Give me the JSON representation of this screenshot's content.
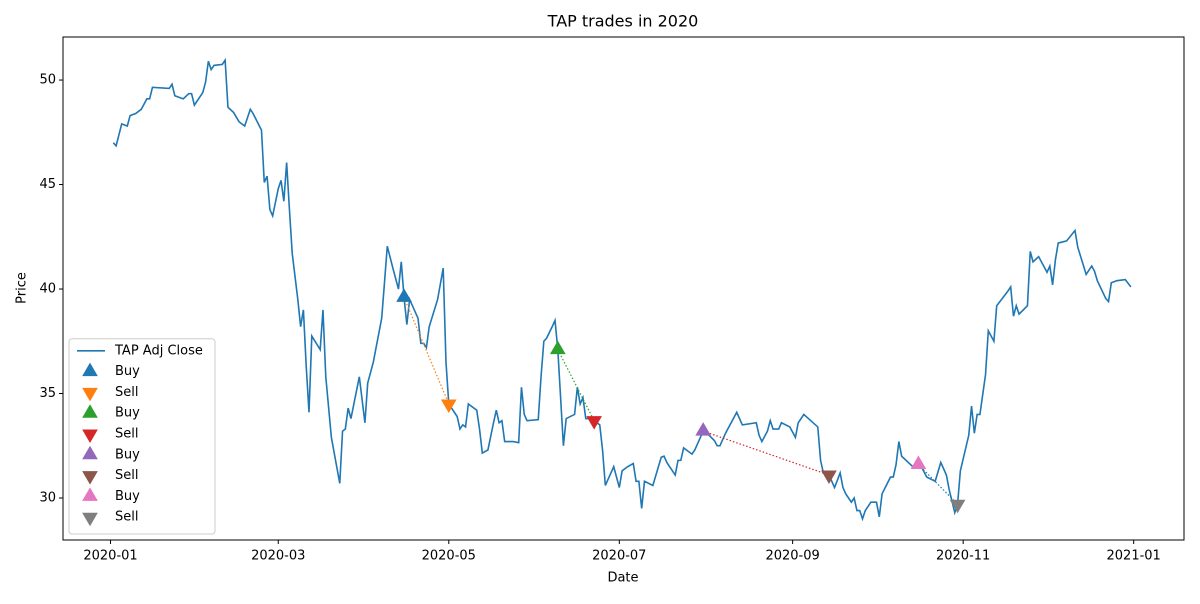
{
  "chart_data": {
    "type": "line",
    "title": "TAP trades in 2020",
    "x_label": "Date",
    "y_label": "Price",
    "xlim": [
      "2019-12-15",
      "2021-01-19"
    ],
    "ylim": [
      27.99,
      52.06
    ],
    "xticks": [
      {
        "value": "2020-01-01",
        "label": "2020-01"
      },
      {
        "value": "2020-03-01",
        "label": "2020-03"
      },
      {
        "value": "2020-05-01",
        "label": "2020-05"
      },
      {
        "value": "2020-07-01",
        "label": "2020-07"
      },
      {
        "value": "2020-09-01",
        "label": "2020-09"
      },
      {
        "value": "2020-11-01",
        "label": "2020-11"
      },
      {
        "value": "2021-01-01",
        "label": "2021-01"
      }
    ],
    "yticks": [
      30,
      35,
      40,
      45,
      50
    ],
    "grid": false,
    "legend": "lower left",
    "series": [
      {
        "name": "TAP Adj Close",
        "color": "#1f77b4",
        "marker": "line",
        "x": [
          "2020-01-02",
          "2020-01-03",
          "2020-01-05",
          "2020-01-07",
          "2020-01-08",
          "2020-01-10",
          "2020-01-12",
          "2020-01-14",
          "2020-01-15",
          "2020-01-16",
          "2020-01-22",
          "2020-01-23",
          "2020-01-24",
          "2020-01-27",
          "2020-01-29",
          "2020-01-30",
          "2020-01-31",
          "2020-02-03",
          "2020-02-04",
          "2020-02-05",
          "2020-02-06",
          "2020-02-07",
          "2020-02-10",
          "2020-02-11",
          "2020-02-12",
          "2020-02-14",
          "2020-02-16",
          "2020-02-18",
          "2020-02-20",
          "2020-02-21",
          "2020-02-24",
          "2020-02-25",
          "2020-02-26",
          "2020-02-27",
          "2020-02-28",
          "2020-03-01",
          "2020-03-02",
          "2020-03-03",
          "2020-03-04",
          "2020-03-05",
          "2020-03-06",
          "2020-03-08",
          "2020-03-09",
          "2020-03-10",
          "2020-03-11",
          "2020-03-12",
          "2020-03-13",
          "2020-03-16",
          "2020-03-17",
          "2020-03-18",
          "2020-03-20",
          "2020-03-23",
          "2020-03-24",
          "2020-03-25",
          "2020-03-26",
          "2020-03-27",
          "2020-03-30",
          "2020-04-01",
          "2020-04-02",
          "2020-04-04",
          "2020-04-07",
          "2020-04-08",
          "2020-04-09",
          "2020-04-11",
          "2020-04-13",
          "2020-04-14",
          "2020-04-15",
          "2020-04-16",
          "2020-04-17",
          "2020-04-20",
          "2020-04-21",
          "2020-04-22",
          "2020-04-23",
          "2020-04-24",
          "2020-04-27",
          "2020-04-29",
          "2020-04-30",
          "2020-05-01",
          "2020-05-04",
          "2020-05-05",
          "2020-05-06",
          "2020-05-07",
          "2020-05-08",
          "2020-05-11",
          "2020-05-12",
          "2020-05-13",
          "2020-05-15",
          "2020-05-17",
          "2020-05-18",
          "2020-05-19",
          "2020-05-20",
          "2020-05-21",
          "2020-05-24",
          "2020-05-26",
          "2020-05-27",
          "2020-05-28",
          "2020-05-29",
          "2020-06-02",
          "2020-06-03",
          "2020-06-04",
          "2020-06-05",
          "2020-06-07",
          "2020-06-08",
          "2020-06-09",
          "2020-06-11",
          "2020-06-12",
          "2020-06-15",
          "2020-06-16",
          "2020-06-17",
          "2020-06-18",
          "2020-06-19",
          "2020-06-20",
          "2020-06-22",
          "2020-06-24",
          "2020-06-25",
          "2020-06-26",
          "2020-06-29",
          "2020-07-01",
          "2020-07-02",
          "2020-07-04",
          "2020-07-06",
          "2020-07-07",
          "2020-07-08",
          "2020-07-09",
          "2020-07-10",
          "2020-07-13",
          "2020-07-15",
          "2020-07-16",
          "2020-07-17",
          "2020-07-18",
          "2020-07-21",
          "2020-07-22",
          "2020-07-23",
          "2020-07-24",
          "2020-07-27",
          "2020-07-28",
          "2020-07-29",
          "2020-07-31",
          "2020-08-01",
          "2020-08-04",
          "2020-08-05",
          "2020-08-06",
          "2020-08-08",
          "2020-08-10",
          "2020-08-12",
          "2020-08-14",
          "2020-08-19",
          "2020-08-20",
          "2020-08-21",
          "2020-08-23",
          "2020-08-24",
          "2020-08-25",
          "2020-08-27",
          "2020-08-28",
          "2020-08-31",
          "2020-09-02",
          "2020-09-03",
          "2020-09-05",
          "2020-09-10",
          "2020-09-11",
          "2020-09-12",
          "2020-09-14",
          "2020-09-16",
          "2020-09-18",
          "2020-09-19",
          "2020-09-20",
          "2020-09-22",
          "2020-09-23",
          "2020-09-24",
          "2020-09-25",
          "2020-09-26",
          "2020-09-27",
          "2020-09-29",
          "2020-10-01",
          "2020-10-02",
          "2020-10-03",
          "2020-10-06",
          "2020-10-07",
          "2020-10-08",
          "2020-10-09",
          "2020-10-10",
          "2020-10-14",
          "2020-10-16",
          "2020-10-17",
          "2020-10-19",
          "2020-10-22",
          "2020-10-24",
          "2020-10-26",
          "2020-10-27",
          "2020-10-29",
          "2020-10-30",
          "2020-10-31",
          "2020-11-03",
          "2020-11-04",
          "2020-11-05",
          "2020-11-06",
          "2020-11-07",
          "2020-11-09",
          "2020-11-10",
          "2020-11-12",
          "2020-11-13",
          "2020-11-17",
          "2020-11-18",
          "2020-11-19",
          "2020-11-20",
          "2020-11-21",
          "2020-11-24",
          "2020-11-25",
          "2020-11-26",
          "2020-11-28",
          "2020-12-01",
          "2020-12-02",
          "2020-12-03",
          "2020-12-04",
          "2020-12-05",
          "2020-12-08",
          "2020-12-11",
          "2020-12-12",
          "2020-12-15",
          "2020-12-16",
          "2020-12-17",
          "2020-12-18",
          "2020-12-19",
          "2020-12-22",
          "2020-12-23",
          "2020-12-24",
          "2020-12-26",
          "2020-12-29",
          "2020-12-31"
        ],
        "values": [
          47.0,
          46.85,
          47.9,
          47.8,
          48.3,
          48.4,
          48.6,
          49.1,
          49.1,
          49.65,
          49.6,
          49.8,
          49.25,
          49.1,
          49.35,
          49.35,
          48.8,
          49.4,
          49.9,
          50.9,
          50.5,
          50.7,
          50.75,
          50.95,
          48.7,
          48.45,
          48.0,
          47.8,
          48.6,
          48.4,
          47.6,
          45.1,
          45.4,
          43.8,
          43.5,
          44.8,
          45.2,
          44.2,
          46.05,
          43.8,
          41.7,
          39.5,
          38.2,
          39.0,
          36.3,
          34.1,
          37.75,
          37.1,
          39.0,
          35.8,
          32.9,
          30.7,
          33.2,
          33.3,
          34.3,
          33.8,
          35.8,
          33.6,
          35.5,
          36.5,
          38.6,
          40.3,
          42.05,
          41.0,
          40.0,
          41.3,
          39.6,
          38.3,
          39.5,
          38.6,
          37.4,
          37.4,
          37.2,
          38.2,
          39.5,
          41.0,
          36.5,
          34.5,
          33.9,
          33.3,
          33.5,
          33.4,
          34.5,
          34.2,
          33.3,
          32.15,
          32.3,
          33.6,
          34.2,
          33.6,
          33.7,
          32.7,
          32.7,
          32.65,
          35.3,
          34.0,
          33.7,
          33.75,
          35.8,
          37.5,
          37.65,
          38.2,
          38.5,
          37.1,
          32.5,
          33.8,
          34.0,
          35.3,
          34.5,
          34.8,
          33.8,
          33.8,
          33.7,
          33.5,
          32.3,
          30.6,
          31.5,
          30.5,
          31.3,
          31.5,
          31.65,
          30.8,
          30.8,
          29.5,
          30.8,
          30.6,
          31.5,
          31.95,
          32.0,
          31.7,
          31.1,
          31.8,
          31.8,
          32.4,
          32.1,
          32.3,
          32.6,
          33.2,
          33.15,
          32.75,
          32.5,
          32.5,
          33.1,
          33.6,
          34.1,
          33.5,
          33.6,
          33.0,
          32.7,
          33.2,
          33.7,
          33.3,
          33.3,
          33.6,
          33.4,
          32.9,
          33.6,
          34.0,
          33.4,
          31.8,
          31.2,
          31.1,
          30.5,
          31.2,
          30.5,
          30.2,
          29.8,
          30.0,
          29.4,
          29.4,
          29.0,
          29.4,
          29.8,
          29.8,
          29.1,
          30.2,
          31.0,
          31.0,
          31.6,
          32.7,
          32.0,
          31.5,
          31.6,
          31.5,
          31.0,
          30.8,
          31.7,
          31.1,
          30.4,
          29.3,
          29.7,
          31.3,
          33.0,
          34.4,
          33.1,
          34.0,
          34.0,
          35.9,
          38.0,
          37.5,
          39.2,
          39.9,
          40.1,
          38.7,
          39.2,
          38.8,
          39.2,
          41.8,
          41.3,
          41.55,
          40.8,
          41.1,
          40.2,
          41.4,
          42.2,
          42.3,
          42.8,
          42.0,
          40.7,
          40.9,
          41.1,
          40.85,
          40.4,
          39.55,
          39.4,
          40.3,
          40.4,
          40.45,
          40.1
        ]
      },
      {
        "name": "Buy",
        "color": "#1f77b4",
        "marker": "up",
        "x": [
          "2020-04-15"
        ],
        "values": [
          39.6
        ]
      },
      {
        "name": "Sell",
        "color": "#ff7f0e",
        "marker": "down",
        "line_color": "#ff7f0e",
        "x": [
          "2020-05-01"
        ],
        "values": [
          34.5
        ]
      },
      {
        "name": "Buy",
        "color": "#2ca02c",
        "marker": "up",
        "x": [
          "2020-06-09"
        ],
        "values": [
          37.1
        ]
      },
      {
        "name": "Sell",
        "color": "#d62728",
        "marker": "down",
        "line_color": "#2ca02c",
        "x": [
          "2020-06-22"
        ],
        "values": [
          33.7
        ]
      },
      {
        "name": "Buy",
        "color": "#9467bd",
        "marker": "up",
        "x": [
          "2020-07-31"
        ],
        "values": [
          33.2
        ]
      },
      {
        "name": "Sell",
        "color": "#8c564b",
        "marker": "down",
        "line_color": "#d62728",
        "x": [
          "2020-09-14"
        ],
        "values": [
          31.1
        ]
      },
      {
        "name": "Buy",
        "color": "#e377c2",
        "marker": "up",
        "x": [
          "2020-10-16"
        ],
        "values": [
          31.6
        ]
      },
      {
        "name": "Sell",
        "color": "#7f7f7f",
        "marker": "down",
        "line_color": "#1f77b4",
        "x": [
          "2020-10-30"
        ],
        "values": [
          29.7
        ]
      }
    ]
  }
}
